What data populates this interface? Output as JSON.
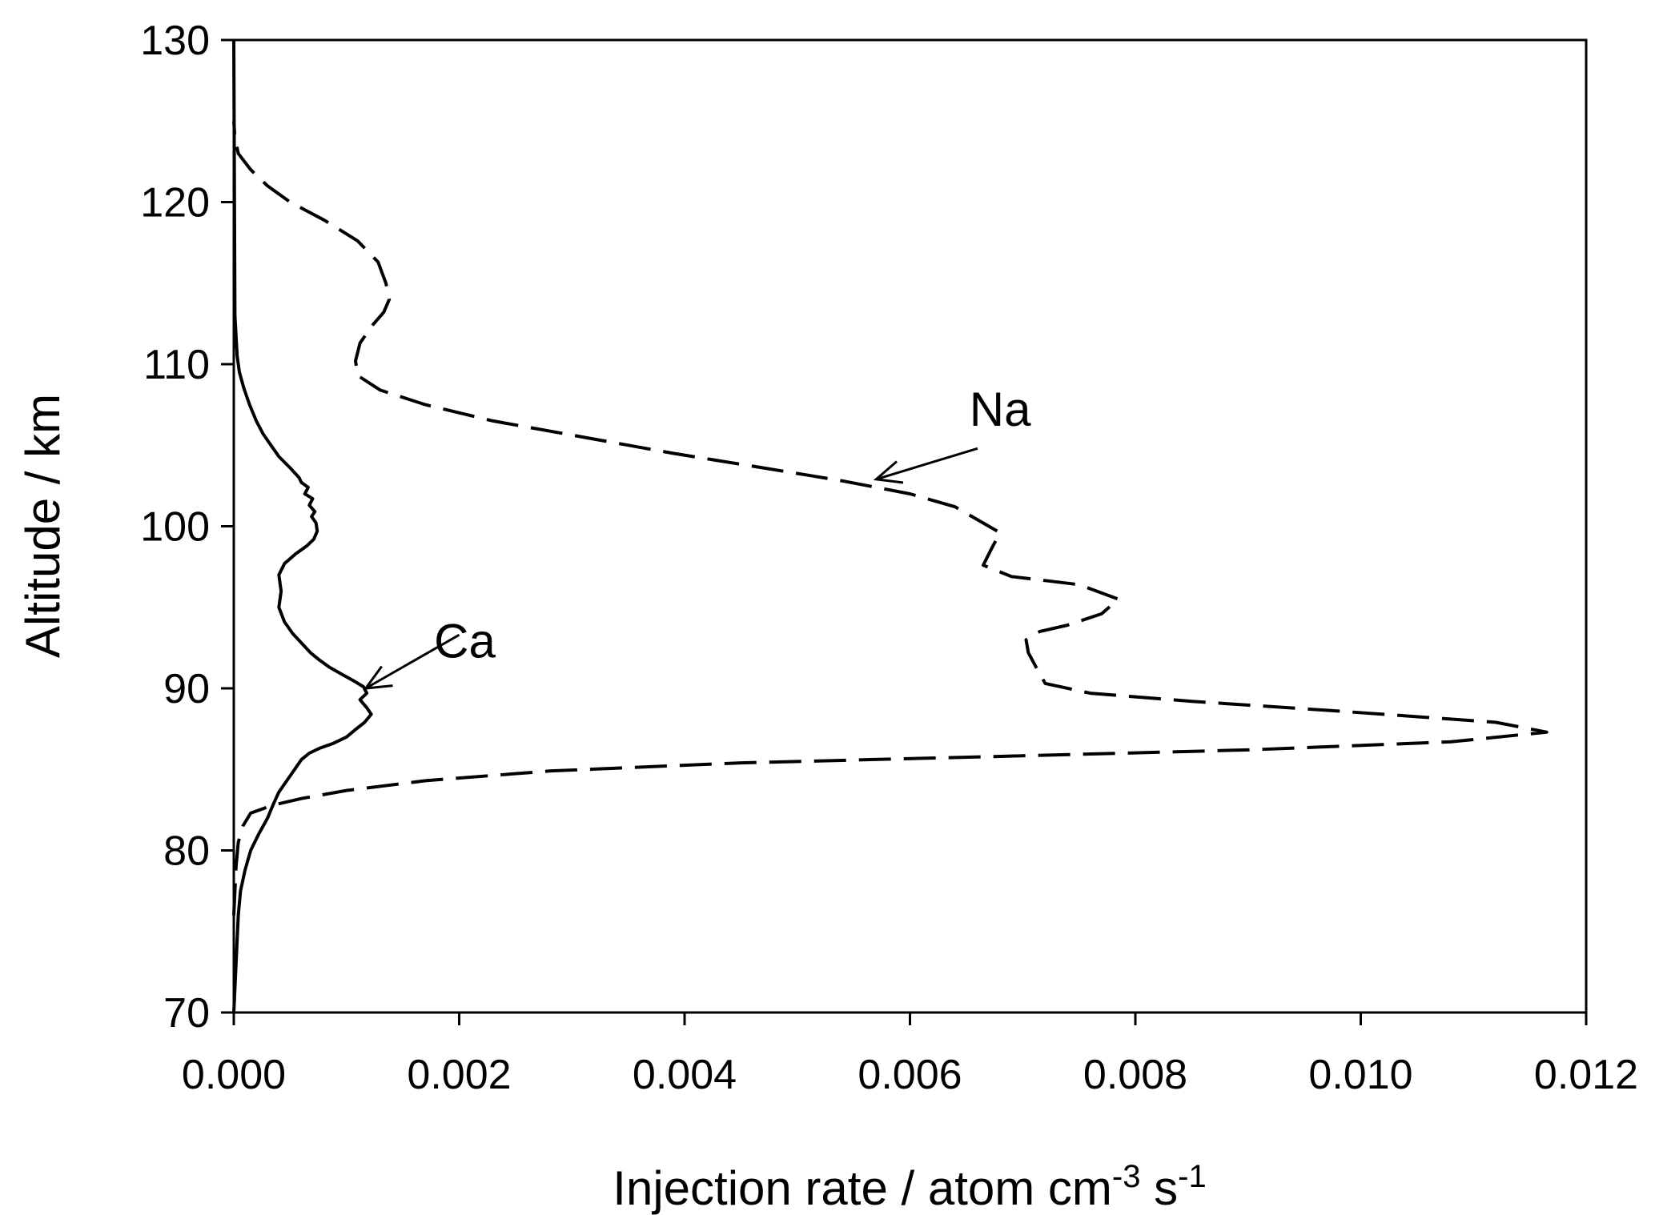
{
  "chart_data": {
    "type": "line",
    "title": "",
    "xlabel": {
      "text": "Injection rate / atom cm",
      "sup1": "-3",
      "mid": " s",
      "sup2": "-1"
    },
    "ylabel": "Altitude / km",
    "xlim": [
      0,
      0.012
    ],
    "ylim": [
      70,
      130
    ],
    "xticks": [
      0.0,
      0.002,
      0.004,
      0.006,
      0.008,
      0.01,
      0.012
    ],
    "xtick_labels": [
      "0.000",
      "0.002",
      "0.004",
      "0.006",
      "0.008",
      "0.010",
      "0.012"
    ],
    "yticks": [
      70,
      80,
      90,
      100,
      110,
      120,
      130
    ],
    "ytick_labels": [
      "70",
      "80",
      "90",
      "100",
      "110",
      "120",
      "130"
    ],
    "grid": false,
    "legend": "none",
    "series": [
      {
        "name": "Na",
        "style": "dashed",
        "color": "#000000",
        "points": [
          [
            0.0,
            76.0
          ],
          [
            2e-05,
            79.0
          ],
          [
            4e-05,
            80.5
          ],
          [
            8e-05,
            81.5
          ],
          [
            0.00015,
            82.3
          ],
          [
            0.00035,
            82.8
          ],
          [
            0.0006,
            83.2
          ],
          [
            0.001,
            83.7
          ],
          [
            0.0017,
            84.3
          ],
          [
            0.0028,
            84.9
          ],
          [
            0.0045,
            85.4
          ],
          [
            0.0068,
            85.8
          ],
          [
            0.009,
            86.2
          ],
          [
            0.0108,
            86.7
          ],
          [
            0.01165,
            87.3
          ],
          [
            0.0112,
            87.9
          ],
          [
            0.0098,
            88.6
          ],
          [
            0.0085,
            89.2
          ],
          [
            0.0076,
            89.7
          ],
          [
            0.0072,
            90.3
          ],
          [
            0.00712,
            91.3
          ],
          [
            0.00705,
            92.2
          ],
          [
            0.00703,
            93.0
          ],
          [
            0.00715,
            93.5
          ],
          [
            0.0074,
            93.9
          ],
          [
            0.0077,
            94.6
          ],
          [
            0.00785,
            95.5
          ],
          [
            0.0075,
            96.4
          ],
          [
            0.0069,
            96.9
          ],
          [
            0.00665,
            97.6
          ],
          [
            0.00673,
            98.7
          ],
          [
            0.0068,
            99.6
          ],
          [
            0.0066,
            100.4
          ],
          [
            0.0064,
            101.2
          ],
          [
            0.006,
            102.0
          ],
          [
            0.0054,
            102.8
          ],
          [
            0.0047,
            103.6
          ],
          [
            0.0039,
            104.5
          ],
          [
            0.0031,
            105.5
          ],
          [
            0.0023,
            106.5
          ],
          [
            0.0017,
            107.5
          ],
          [
            0.0013,
            108.4
          ],
          [
            0.0011,
            109.3
          ],
          [
            0.00108,
            110.2
          ],
          [
            0.00112,
            111.3
          ],
          [
            0.00123,
            112.4
          ],
          [
            0.00133,
            113.2
          ],
          [
            0.00138,
            114.0
          ],
          [
            0.00135,
            115.0
          ],
          [
            0.00128,
            116.3
          ],
          [
            0.0011,
            117.6
          ],
          [
            0.0008,
            118.9
          ],
          [
            0.0005,
            120.0
          ],
          [
            0.0003,
            121.0
          ],
          [
            0.00015,
            122.0
          ],
          [
            4e-05,
            123.0
          ],
          [
            1e-05,
            124.0
          ],
          [
            0.0,
            125.0
          ]
        ]
      },
      {
        "name": "Ca",
        "style": "solid",
        "color": "#000000",
        "points": [
          [
            0.0,
            70.0
          ],
          [
            2e-05,
            73.0
          ],
          [
            4e-05,
            76.0
          ],
          [
            6e-05,
            77.5
          ],
          [
            0.0001,
            78.8
          ],
          [
            0.00015,
            80.0
          ],
          [
            0.00022,
            81.0
          ],
          [
            0.0003,
            82.0
          ],
          [
            0.00033,
            82.5
          ],
          [
            0.00036,
            83.0
          ],
          [
            0.0004,
            83.6
          ],
          [
            0.00045,
            84.1
          ],
          [
            0.0005,
            84.6
          ],
          [
            0.00055,
            85.1
          ],
          [
            0.0006,
            85.6
          ],
          [
            0.00067,
            86.0
          ],
          [
            0.00076,
            86.3
          ],
          [
            0.00088,
            86.6
          ],
          [
            0.001,
            87.0
          ],
          [
            0.00107,
            87.4
          ],
          [
            0.00116,
            87.9
          ],
          [
            0.00122,
            88.4
          ],
          [
            0.00118,
            88.8
          ],
          [
            0.00112,
            89.3
          ],
          [
            0.00118,
            89.7
          ],
          [
            0.00115,
            90.1
          ],
          [
            0.00108,
            90.4
          ],
          [
            0.00095,
            90.9
          ],
          [
            0.00085,
            91.3
          ],
          [
            0.00075,
            91.8
          ],
          [
            0.00068,
            92.2
          ],
          [
            0.0006,
            92.8
          ],
          [
            0.00052,
            93.4
          ],
          [
            0.00045,
            94.1
          ],
          [
            0.0004,
            95.0
          ],
          [
            0.00042,
            96.0
          ],
          [
            0.0004,
            97.0
          ],
          [
            0.00045,
            97.7
          ],
          [
            0.00055,
            98.3
          ],
          [
            0.00065,
            98.8
          ],
          [
            0.00071,
            99.2
          ],
          [
            0.00074,
            99.7
          ],
          [
            0.00073,
            100.2
          ],
          [
            0.00069,
            100.6
          ],
          [
            0.00072,
            100.9
          ],
          [
            0.00067,
            101.3
          ],
          [
            0.0007,
            101.7
          ],
          [
            0.00063,
            102.0
          ],
          [
            0.00066,
            102.4
          ],
          [
            0.0006,
            102.7
          ],
          [
            0.00058,
            103.0
          ],
          [
            0.0005,
            103.6
          ],
          [
            0.0004,
            104.3
          ],
          [
            0.00033,
            105.0
          ],
          [
            0.00026,
            105.7
          ],
          [
            0.0002,
            106.5
          ],
          [
            0.00014,
            107.5
          ],
          [
            9e-05,
            108.5
          ],
          [
            5e-05,
            109.5
          ],
          [
            3e-05,
            110.5
          ],
          [
            1e-05,
            113.0
          ],
          [
            0.0,
            130.0
          ]
        ]
      }
    ],
    "annotations": [
      {
        "text": "Na",
        "label_at": [
          0.0068,
          106.2
        ],
        "arrow_from": [
          0.0066,
          104.8
        ],
        "arrow_to": [
          0.0057,
          102.9
        ]
      },
      {
        "text": "Ca",
        "label_at": [
          0.00205,
          91.9
        ],
        "arrow_from": [
          0.002,
          93.3
        ],
        "arrow_to": [
          0.00117,
          90.0
        ]
      }
    ]
  }
}
